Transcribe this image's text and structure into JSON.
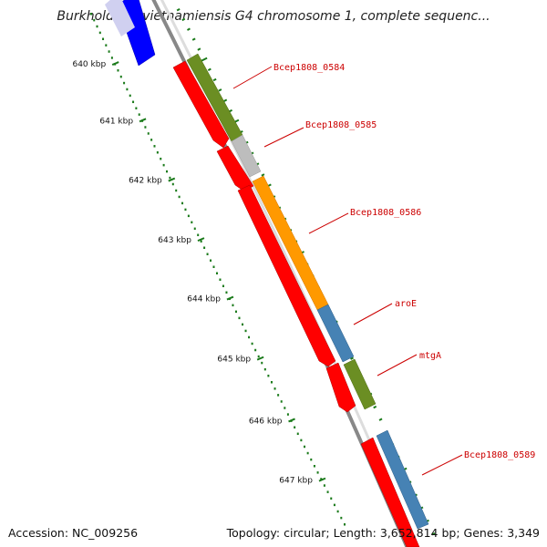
{
  "title": "Burkholderia vietnamiensis G4 chromosome 1, complete sequenc...",
  "accession": "Accession: NC_009256",
  "summary": "Topology: circular; Length: 3,652,814 bp; Genes: 3,349",
  "ruler": {
    "labels": [
      "640 kbp",
      "641 kbp",
      "642 kbp",
      "643 kbp",
      "644 kbp",
      "645 kbp",
      "646 kbp",
      "647 kbp"
    ]
  },
  "genes": [
    {
      "name": "Bcep1808_0584",
      "color": "#6b8e23"
    },
    {
      "name": "Bcep1808_0585",
      "color": "#bdbdbd"
    },
    {
      "name": "Bcep1808_0586",
      "color": "#ff9900"
    },
    {
      "name": "aroE",
      "color": "#4682b4"
    },
    {
      "name": "mtgA",
      "color": "#6b8e23"
    },
    {
      "name": "Bcep1808_0589",
      "color": "#4682b4"
    }
  ],
  "colors": {
    "cds": "#ff0000",
    "cds_previous": "#0000ff",
    "backbone": "#888888",
    "tick": "#1a7a1a",
    "label_line": "#cc0000"
  }
}
